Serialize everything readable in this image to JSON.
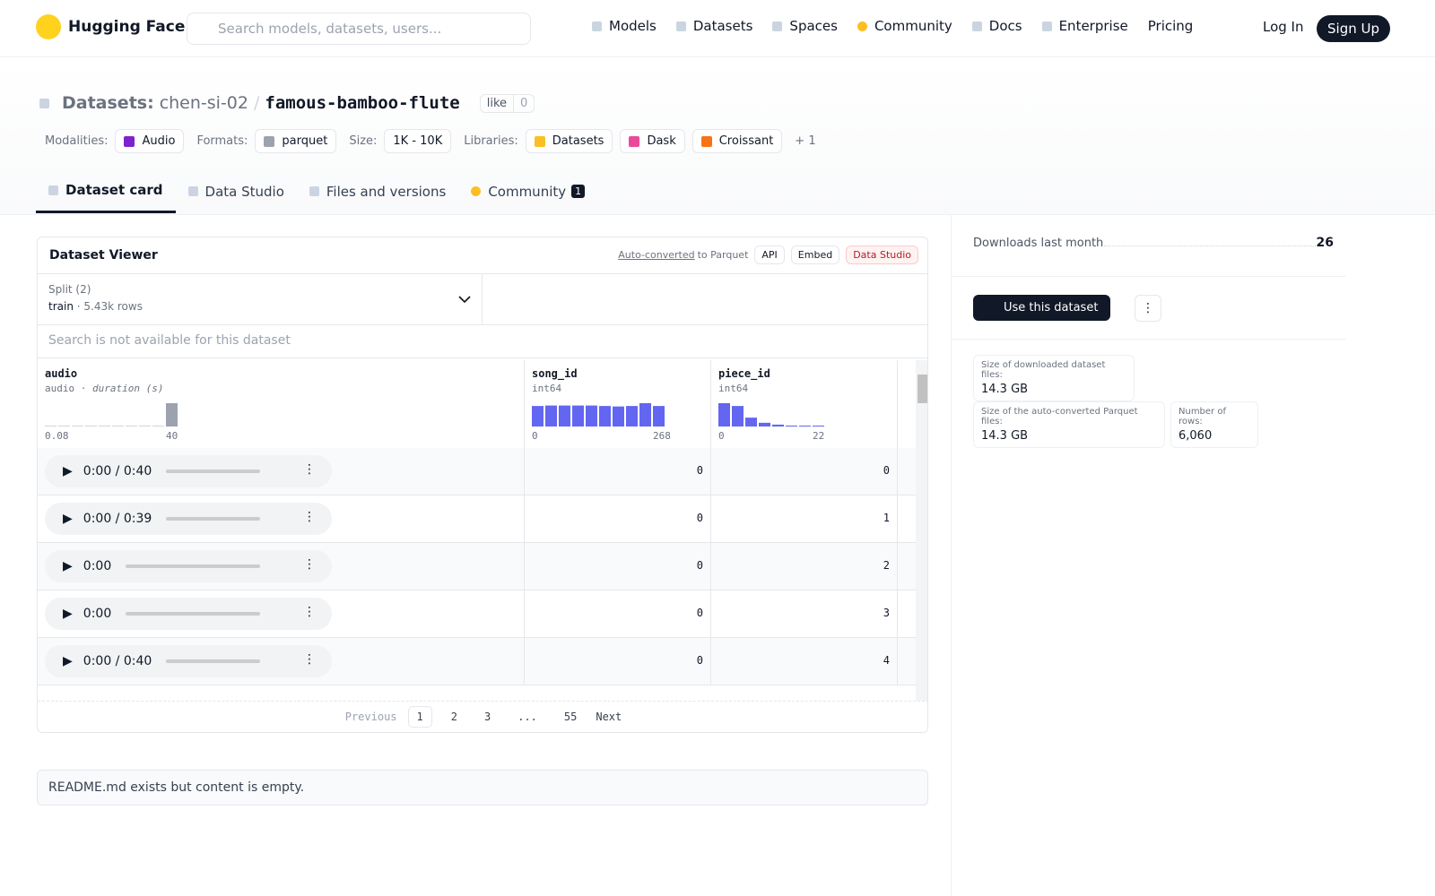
{
  "nav": {
    "brand": "Hugging Face",
    "search_placeholder": "Search models, datasets, users...",
    "links": [
      "Models",
      "Datasets",
      "Spaces",
      "Community",
      "Docs",
      "Enterprise",
      "Pricing"
    ],
    "login": "Log In",
    "signup": "Sign Up"
  },
  "header": {
    "kind": "Datasets:",
    "owner": "chen-si-02",
    "separator": "/",
    "name": "famous-bamboo-flute",
    "like": "like",
    "likes": 0,
    "tags": [
      {
        "label": "Modalities:",
        "items": [
          "Audio"
        ]
      },
      {
        "label": "Formats:",
        "items": [
          "parquet"
        ]
      },
      {
        "label": "Size:",
        "items": [
          "1K - 10K"
        ]
      },
      {
        "label": "Libraries:",
        "items": [
          "Datasets",
          "Dask",
          "Croissant"
        ]
      }
    ],
    "more": "+ 1"
  },
  "tabs": [
    {
      "label": "Dataset card"
    },
    {
      "label": "Data Studio"
    },
    {
      "label": "Files and versions"
    },
    {
      "label": "Community",
      "badge": 1
    }
  ],
  "viewer": {
    "title": "Dataset Viewer",
    "auto_converted": "Auto-converted",
    "to_parquet": "to Parquet",
    "buttons": [
      "API",
      "Embed",
      "Data Studio"
    ],
    "split_label": "Split (2)",
    "split": "train",
    "split_rows": "5.43k rows",
    "search": "Search is not available for this dataset",
    "columns": [
      {
        "name": "audio",
        "dtype": "audio",
        "extra": "duration (s)",
        "hist_min": 0.08,
        "hist_max": 40,
        "histogram": [
          1,
          1,
          1,
          1,
          1,
          1,
          1,
          1,
          1,
          100
        ]
      },
      {
        "name": "song_id",
        "dtype": "int64",
        "hist_min": 0,
        "hist_max": 268,
        "histogram": [
          88,
          90,
          90,
          90,
          90,
          88,
          86,
          88,
          100,
          88
        ]
      },
      {
        "name": "piece_id",
        "dtype": "int64",
        "hist_min": 0,
        "hist_max": 22,
        "histogram": [
          100,
          88,
          38,
          16,
          8,
          4,
          3,
          2
        ]
      }
    ],
    "rows": [
      {
        "audio": "0:00 / 0:40",
        "song_id": 0,
        "piece_id": 0
      },
      {
        "audio": "0:00 / 0:39",
        "song_id": 0,
        "piece_id": 1
      },
      {
        "audio": "0:00",
        "song_id": 0,
        "piece_id": 2
      },
      {
        "audio": "0:00",
        "song_id": 0,
        "piece_id": 3
      },
      {
        "audio": "0:00 / 0:40",
        "song_id": 0,
        "piece_id": 4
      }
    ],
    "pagination": {
      "previous": "Previous",
      "pages": [
        "1",
        "2",
        "3",
        "...",
        "55"
      ],
      "next": "Next"
    }
  },
  "readme": "README.md exists but content is empty.",
  "sidebar": {
    "downloads_label": "Downloads last month",
    "downloads": 26,
    "use": "Use this dataset",
    "stats": [
      {
        "label": "Size of downloaded dataset files:",
        "value": "14.3 GB"
      },
      {
        "label": "Size of the auto-converted Parquet files:",
        "value": "14.3 GB"
      },
      {
        "label": "Number of rows:",
        "value": "6,060"
      }
    ]
  }
}
